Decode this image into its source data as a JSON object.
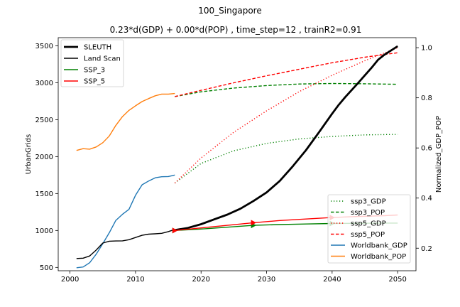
{
  "chart_data": {
    "type": "line",
    "title": "100_Singapore",
    "subtitle": "0.23*d(GDP) + 0.00*d(POP) , time_step=12 , trainR2=0.91",
    "xlabel": "",
    "ylabel_left": "UrbanGrids",
    "ylabel_right": "Normalized_GDP_POP",
    "xlim": [
      1998.2,
      2052.8
    ],
    "ylim_left": [
      455,
      3610
    ],
    "ylim_right": [
      0.11,
      1.04
    ],
    "x_ticks": [
      "2000",
      "2010",
      "2020",
      "2030",
      "2040",
      "2050"
    ],
    "y_left_ticks": [
      "500",
      "1000",
      "1500",
      "2000",
      "2500",
      "3000",
      "3500"
    ],
    "y_right_ticks": [
      "0.2",
      "0.4",
      "0.6",
      "0.8",
      "1.0"
    ],
    "legend_left": {
      "placement": "upper-left",
      "entries": [
        {
          "label": "SLEUTH",
          "color": "#000000",
          "style": "solid-thick"
        },
        {
          "label": "Land Scan",
          "color": "#000000",
          "style": "solid"
        },
        {
          "label": "SSP_3",
          "color": "#008000",
          "style": "solid"
        },
        {
          "label": "SSP_5",
          "color": "#ff0000",
          "style": "solid"
        }
      ]
    },
    "legend_right": {
      "placement": "lower-right",
      "entries": [
        {
          "label": "ssp3_GDP",
          "color": "#008000",
          "style": "dotted"
        },
        {
          "label": "ssp3_POP",
          "color": "#008000",
          "style": "dashed"
        },
        {
          "label": "ssp5_GDP",
          "color": "#ff0000",
          "style": "dotted"
        },
        {
          "label": "ssp5_POP",
          "color": "#ff0000",
          "style": "dashed"
        },
        {
          "label": "Worldbank_GDP",
          "color": "#1f77b4",
          "style": "solid"
        },
        {
          "label": "Worldbank_POP",
          "color": "#ff7f0e",
          "style": "solid"
        }
      ]
    },
    "series": [
      {
        "name": "SLEUTH",
        "axis": "left",
        "color": "#000000",
        "style": "solid-thick",
        "x": [
          2016,
          2018,
          2020,
          2022,
          2024,
          2026,
          2028,
          2030,
          2032,
          2034,
          2036,
          2038,
          2040,
          2041,
          2042,
          2044,
          2046,
          2047,
          2048,
          2050
        ],
        "y": [
          1005,
          1035,
          1085,
          1150,
          1215,
          1295,
          1400,
          1515,
          1670,
          1870,
          2085,
          2330,
          2580,
          2700,
          2805,
          3000,
          3200,
          3310,
          3380,
          3495
        ]
      },
      {
        "name": "Land Scan",
        "axis": "left",
        "color": "#000000",
        "style": "solid",
        "x": [
          2001,
          2002,
          2003,
          2004,
          2005,
          2006,
          2007,
          2008,
          2009,
          2010,
          2011,
          2012,
          2013,
          2014,
          2015,
          2016
        ],
        "y": [
          620,
          625,
          655,
          735,
          830,
          855,
          858,
          860,
          875,
          905,
          935,
          950,
          955,
          962,
          985,
          1015
        ]
      },
      {
        "name": "SSP_3",
        "axis": "left",
        "color": "#008000",
        "style": "solid",
        "x": [
          2016,
          2020,
          2024,
          2028,
          2032,
          2036,
          2040,
          2044,
          2048,
          2050
        ],
        "y": [
          1000,
          1020,
          1045,
          1070,
          1080,
          1088,
          1095,
          1098,
          1100,
          1100
        ]
      },
      {
        "name": "SSP_5",
        "axis": "left",
        "color": "#ff0000",
        "style": "solid",
        "x": [
          2016,
          2020,
          2024,
          2028,
          2032,
          2036,
          2040,
          2044,
          2048,
          2050
        ],
        "y": [
          1000,
          1035,
          1070,
          1105,
          1135,
          1155,
          1175,
          1190,
          1200,
          1210
        ]
      },
      {
        "name": "ssp3_GDP",
        "axis": "right",
        "color": "#008000",
        "style": "dotted",
        "x": [
          2016,
          2020,
          2025,
          2030,
          2035,
          2040,
          2045,
          2050
        ],
        "y": [
          0.46,
          0.538,
          0.589,
          0.618,
          0.636,
          0.646,
          0.652,
          0.654
        ]
      },
      {
        "name": "ssp3_POP",
        "axis": "right",
        "color": "#008000",
        "style": "dashed",
        "x": [
          2016,
          2020,
          2025,
          2030,
          2035,
          2040,
          2045,
          2050
        ],
        "y": [
          0.805,
          0.824,
          0.839,
          0.849,
          0.855,
          0.857,
          0.856,
          0.854
        ]
      },
      {
        "name": "ssp5_GDP",
        "axis": "right",
        "color": "#ff0000",
        "style": "dotted",
        "x": [
          2016,
          2020,
          2025,
          2030,
          2035,
          2040,
          2045,
          2050
        ],
        "y": [
          0.46,
          0.56,
          0.663,
          0.748,
          0.825,
          0.89,
          0.948,
          1.0
        ]
      },
      {
        "name": "ssp5_POP",
        "axis": "right",
        "color": "#ff0000",
        "style": "dashed",
        "x": [
          2016,
          2020,
          2025,
          2030,
          2035,
          2040,
          2045,
          2050
        ],
        "y": [
          0.805,
          0.83,
          0.86,
          0.888,
          0.914,
          0.94,
          0.962,
          0.98
        ]
      },
      {
        "name": "Worldbank_GDP",
        "axis": "right",
        "color": "#1f77b4",
        "style": "solid",
        "x": [
          2001,
          2002,
          2003,
          2004,
          2005,
          2006,
          2007,
          2008,
          2009,
          2010,
          2011,
          2012,
          2013,
          2014,
          2015,
          2016
        ],
        "y": [
          0.122,
          0.125,
          0.142,
          0.176,
          0.218,
          0.262,
          0.311,
          0.335,
          0.355,
          0.411,
          0.453,
          0.468,
          0.481,
          0.485,
          0.486,
          0.492
        ]
      },
      {
        "name": "Worldbank_POP",
        "axis": "right",
        "color": "#ff7f0e",
        "style": "solid",
        "x": [
          2001,
          2002,
          2003,
          2004,
          2005,
          2006,
          2007,
          2008,
          2009,
          2010,
          2011,
          2012,
          2013,
          2014,
          2015,
          2016
        ],
        "y": [
          0.59,
          0.597,
          0.595,
          0.604,
          0.621,
          0.648,
          0.69,
          0.725,
          0.75,
          0.768,
          0.785,
          0.797,
          0.808,
          0.815,
          0.815,
          0.817
        ]
      }
    ],
    "markers": [
      {
        "series": "SSP_3",
        "shape": "triangle-right",
        "x": [
          2016,
          2028,
          2040
        ]
      },
      {
        "series": "SSP_5",
        "shape": "triangle-right",
        "x": [
          2016,
          2028,
          2040
        ]
      }
    ]
  }
}
